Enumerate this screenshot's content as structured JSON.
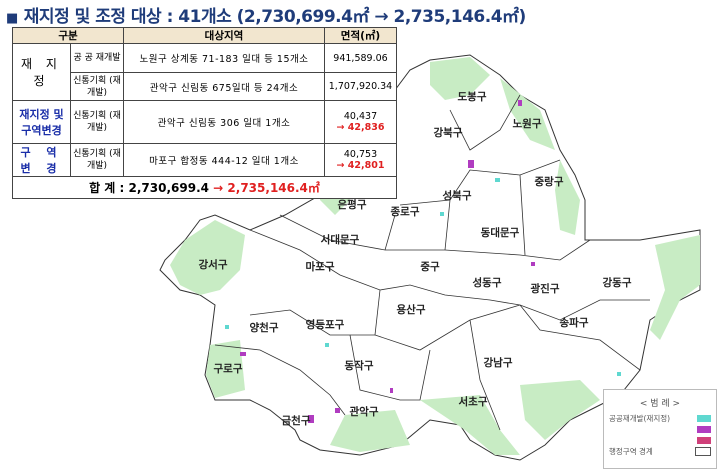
{
  "title": {
    "bullet": "■",
    "text": "재지정 및 조정 대상 : 41개소 (2,730,699.4㎡ → 2,735,146.4㎡)"
  },
  "table": {
    "headers": [
      "구분",
      "대상지역",
      "면적(㎡)"
    ],
    "rows": [
      {
        "group": "재 지 정",
        "type": "공 공 재개발",
        "area_desc": "노원구 상계동 71-183 일대 등 15개소",
        "value": "941,589.06"
      },
      {
        "type": "신통기획 (재개발)",
        "area_desc": "관악구 신림동 675일대 등 24개소",
        "value": "1,707,920.34"
      },
      {
        "group": "재지정 및 구역변경",
        "type": "신통기획 (재개발)",
        "area_desc": "관악구 신림동 306 일대 1개소",
        "value": "40,437",
        "new_value": "→ 42,836"
      },
      {
        "group": "구 역 변 경",
        "type": "신통기획 (재개발)",
        "area_desc": "마포구 합정동 444-12 일대 1개소",
        "value": "40,753",
        "new_value": "→ 42,801"
      }
    ],
    "total": {
      "label": "합  계 : 2,730,699.4",
      "arrow": "→",
      "new": "2,735,146.4㎡"
    }
  },
  "districts": [
    "도봉구",
    "노원구",
    "강북구",
    "은평구",
    "성북구",
    "중랑구",
    "종로구",
    "동대문구",
    "서대문구",
    "마포구",
    "중구",
    "강서구",
    "성동구",
    "광진구",
    "강동구",
    "용산구",
    "양천구",
    "영등포구",
    "구로구",
    "동작구",
    "송파구",
    "강남구",
    "서초구",
    "금천구",
    "관악구"
  ],
  "legend": {
    "title": "< 범 례 >",
    "items": [
      {
        "label": "공공재개발(재지정)",
        "color": "#5fd8d0"
      },
      {
        "label": "",
        "color": "#b03cc0"
      },
      {
        "label": "",
        "color": "#d0407a"
      },
      {
        "label": "행정구역 경계",
        "color": "#ffffff"
      }
    ]
  },
  "colors": {
    "green": "#c8ecc4",
    "title": "#1f3c7a",
    "red": "#e02020"
  }
}
